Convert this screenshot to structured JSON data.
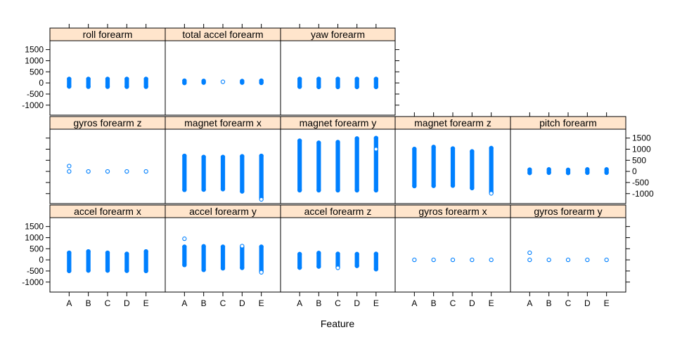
{
  "chart_data": {
    "type": "scatter",
    "title": "",
    "xlabel": "Feature",
    "ylabel": "",
    "categories": [
      "A",
      "B",
      "C",
      "D",
      "E"
    ],
    "yticks": [
      -1000,
      -500,
      0,
      500,
      1000,
      1500
    ],
    "ytick_labels": [
      "-1000",
      "-500",
      "0",
      "500",
      "1000",
      "1500"
    ],
    "ylim": [
      -1450,
      1900
    ],
    "grid": false,
    "layout": "5 columns x 3 rows, shared y scale",
    "colors": {
      "points": "#0080ff",
      "strip_background": "#ffe5cc",
      "frame": "#000000"
    },
    "panels": [
      {
        "row": 1,
        "col": 1,
        "name": "accel forearm x",
        "ranges": [
          [
            -500,
            320
          ],
          [
            -480,
            380
          ],
          [
            -480,
            320
          ],
          [
            -490,
            270
          ],
          [
            -500,
            380
          ]
        ],
        "outliers": [
          [],
          [],
          [],
          [],
          []
        ]
      },
      {
        "row": 1,
        "col": 2,
        "name": "accel forearm y",
        "ranges": [
          [
            -230,
            590
          ],
          [
            -450,
            610
          ],
          [
            -380,
            590
          ],
          [
            -360,
            580
          ],
          [
            -520,
            590
          ]
        ],
        "outliers": [
          [
            950
          ],
          [],
          [],
          [
            620
          ],
          [
            -560
          ]
        ]
      },
      {
        "row": 1,
        "col": 3,
        "name": "accel forearm z",
        "ranges": [
          [
            -350,
            260
          ],
          [
            -300,
            310
          ],
          [
            -330,
            270
          ],
          [
            -270,
            260
          ],
          [
            -420,
            270
          ]
        ],
        "outliers": [
          [],
          [],
          [
            -360
          ],
          [],
          []
        ]
      },
      {
        "row": 1,
        "col": 4,
        "name": "gyros forearm x",
        "ranges": [
          [
            -20,
            20
          ],
          [
            -5,
            5
          ],
          [
            -5,
            5
          ],
          [
            -5,
            5
          ],
          [
            -5,
            5
          ]
        ],
        "outliers": [
          [],
          [],
          [],
          [],
          []
        ]
      },
      {
        "row": 1,
        "col": 5,
        "name": "gyros forearm y",
        "ranges": [
          [
            -10,
            10
          ],
          [
            -5,
            5
          ],
          [
            -5,
            5
          ],
          [
            -5,
            5
          ],
          [
            -5,
            5
          ]
        ],
        "outliers": [
          [
            320
          ],
          [],
          [],
          [],
          []
        ]
      },
      {
        "row": 2,
        "col": 1,
        "name": "gyros forearm z",
        "ranges": [
          [
            -5,
            5
          ],
          [
            -5,
            5
          ],
          [
            -5,
            5
          ],
          [
            -5,
            5
          ],
          [
            -5,
            5
          ]
        ],
        "outliers": [
          [
            240
          ],
          [],
          [],
          [],
          []
        ]
      },
      {
        "row": 2,
        "col": 2,
        "name": "magnet forearm x",
        "ranges": [
          [
            -830,
            700
          ],
          [
            -820,
            650
          ],
          [
            -800,
            650
          ],
          [
            -900,
            680
          ],
          [
            -1180,
            700
          ]
        ],
        "outliers": [
          [],
          [],
          [],
          [],
          [
            -1260
          ]
        ]
      },
      {
        "row": 2,
        "col": 3,
        "name": "magnet forearm y",
        "ranges": [
          [
            -850,
            1380
          ],
          [
            -850,
            1290
          ],
          [
            -850,
            1320
          ],
          [
            -850,
            1480
          ],
          [
            -850,
            1500
          ]
        ],
        "outliers": [
          [],
          [],
          [],
          [],
          [
            1000
          ]
        ]
      },
      {
        "row": 2,
        "col": 4,
        "name": "magnet forearm z",
        "ranges": [
          [
            -660,
            1010
          ],
          [
            -650,
            1100
          ],
          [
            -640,
            1030
          ],
          [
            -750,
            900
          ],
          [
            -950,
            1050
          ]
        ],
        "outliers": [
          [],
          [],
          [],
          [],
          [
            -990
          ]
        ]
      },
      {
        "row": 2,
        "col": 5,
        "name": "pitch forearm",
        "ranges": [
          [
            -70,
            80
          ],
          [
            -60,
            90
          ],
          [
            -70,
            70
          ],
          [
            -60,
            90
          ],
          [
            -60,
            90
          ]
        ],
        "outliers": [
          [],
          [],
          [],
          [],
          []
        ]
      },
      {
        "row": 3,
        "col": 1,
        "name": "roll forearm",
        "ranges": [
          [
            -160,
            180
          ],
          [
            -170,
            180
          ],
          [
            -170,
            180
          ],
          [
            -170,
            180
          ],
          [
            -170,
            180
          ]
        ],
        "outliers": [
          [],
          [],
          [],
          [],
          []
        ]
      },
      {
        "row": 3,
        "col": 2,
        "name": "total accel forearm",
        "ranges": [
          [
            0,
            100
          ],
          [
            15,
            90
          ],
          [
            20,
            80
          ],
          [
            15,
            85
          ],
          [
            5,
            100
          ]
        ],
        "outliers": [
          [],
          [],
          [],
          [],
          []
        ]
      },
      {
        "row": 3,
        "col": 3,
        "name": "yaw forearm",
        "ranges": [
          [
            -170,
            180
          ],
          [
            -180,
            180
          ],
          [
            -180,
            180
          ],
          [
            -180,
            180
          ],
          [
            -180,
            180
          ]
        ],
        "outliers": [
          [],
          [],
          [],
          [],
          []
        ]
      }
    ]
  }
}
